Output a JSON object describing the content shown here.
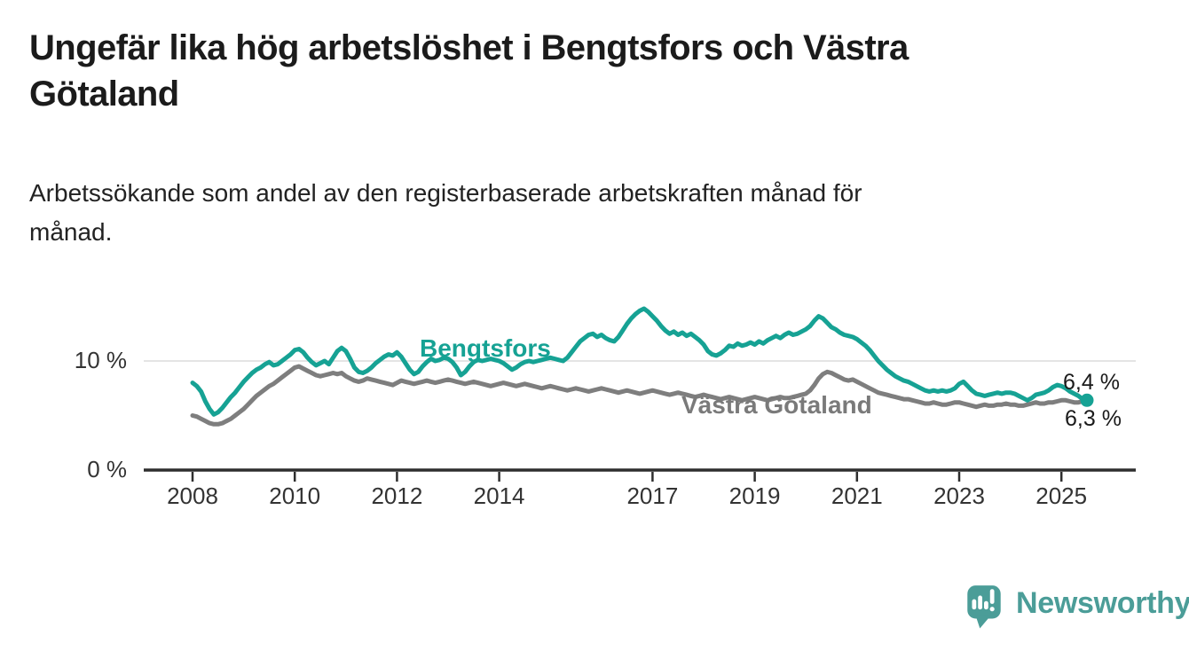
{
  "footer": {
    "brand": "Newsworthy",
    "brand_color": "#4b9d98",
    "logo_icon": "speech-bubble-with-bar-chart-and-exclamation"
  },
  "chart_data": {
    "type": "line",
    "title": "Ungefär lika hög arbetslöshet i Bengtsfors och Västra\nGötaland",
    "subtitle": "Arbetssökande som andel av den registerbaserade arbetskraften månad för\nmånad.",
    "unit": "%",
    "frequency": "monthly",
    "x_start": {
      "year": 2008,
      "month": 1
    },
    "x_end": {
      "year": 2025,
      "month": 7
    },
    "x_ticks": [
      "2008",
      "2010",
      "2012",
      "2014",
      "2017",
      "2019",
      "2021",
      "2023",
      "2025"
    ],
    "y_ticks": [
      {
        "value": 10,
        "label": "10 %"
      },
      {
        "value": 0,
        "label": "0 %"
      }
    ],
    "ylim": [
      0,
      15.5
    ],
    "grid": "single-horizontal-gridline-at-10",
    "legend": "inline-labels-on-lines",
    "colors": {
      "grid": "#dcdcdc",
      "axis": "#2e2e2e",
      "tick_text": "#333333"
    },
    "series": [
      {
        "name": "Bengtsfors",
        "color": "#16a294",
        "end_label": "6,4 %",
        "end_dot": true,
        "values": [
          8.0,
          7.7,
          7.2,
          6.3,
          5.6,
          5.1,
          5.3,
          5.7,
          6.2,
          6.7,
          7.1,
          7.6,
          8.1,
          8.5,
          8.9,
          9.2,
          9.4,
          9.7,
          9.9,
          9.6,
          9.7,
          10.0,
          10.3,
          10.6,
          11.0,
          11.1,
          10.8,
          10.3,
          9.9,
          9.6,
          9.8,
          10.0,
          9.7,
          10.3,
          10.9,
          11.2,
          10.9,
          10.2,
          9.4,
          9.0,
          8.9,
          9.1,
          9.4,
          9.8,
          10.1,
          10.4,
          10.6,
          10.5,
          10.8,
          10.4,
          9.8,
          9.2,
          8.8,
          9.0,
          9.5,
          9.9,
          10.2,
          10.0,
          10.1,
          10.3,
          10.2,
          9.9,
          9.4,
          8.7,
          9.0,
          9.5,
          9.9,
          10.1,
          10.0,
          10.1,
          10.2,
          10.1,
          10.0,
          9.8,
          9.5,
          9.2,
          9.4,
          9.7,
          9.9,
          10.0,
          9.9,
          10.0,
          10.1,
          10.2,
          10.3,
          10.2,
          10.1,
          10.0,
          10.3,
          10.8,
          11.3,
          11.8,
          12.1,
          12.4,
          12.5,
          12.2,
          12.4,
          12.1,
          11.9,
          11.8,
          12.2,
          12.8,
          13.4,
          13.9,
          14.3,
          14.6,
          14.8,
          14.5,
          14.1,
          13.7,
          13.2,
          12.8,
          12.5,
          12.7,
          12.4,
          12.6,
          12.3,
          12.5,
          12.2,
          11.9,
          11.5,
          10.9,
          10.6,
          10.5,
          10.7,
          11.0,
          11.4,
          11.3,
          11.6,
          11.4,
          11.5,
          11.7,
          11.5,
          11.8,
          11.6,
          11.9,
          12.1,
          12.3,
          12.1,
          12.4,
          12.6,
          12.4,
          12.5,
          12.7,
          12.9,
          13.2,
          13.7,
          14.1,
          13.9,
          13.5,
          13.1,
          12.9,
          12.6,
          12.4,
          12.3,
          12.2,
          12.0,
          11.7,
          11.4,
          11.0,
          10.5,
          10.0,
          9.6,
          9.2,
          8.9,
          8.6,
          8.4,
          8.2,
          8.1,
          7.9,
          7.7,
          7.5,
          7.3,
          7.2,
          7.3,
          7.2,
          7.3,
          7.2,
          7.3,
          7.5,
          7.9,
          8.1,
          7.7,
          7.3,
          7.0,
          6.9,
          6.8,
          6.9,
          7.0,
          7.1,
          7.0,
          7.1,
          7.1,
          7.0,
          6.8,
          6.6,
          6.4,
          6.6,
          6.9,
          7.0,
          7.1,
          7.3,
          7.6,
          7.8,
          7.7,
          7.5,
          7.2,
          7.0,
          6.8,
          6.5,
          6.4
        ]
      },
      {
        "name": "Västra Götaland",
        "color": "#7e7e7e",
        "end_label": "6,3 %",
        "end_dot": false,
        "values": [
          5.0,
          4.9,
          4.7,
          4.5,
          4.3,
          4.2,
          4.2,
          4.3,
          4.5,
          4.7,
          5.0,
          5.3,
          5.6,
          6.0,
          6.4,
          6.8,
          7.1,
          7.4,
          7.7,
          7.9,
          8.2,
          8.5,
          8.8,
          9.1,
          9.4,
          9.5,
          9.3,
          9.1,
          8.9,
          8.7,
          8.6,
          8.7,
          8.8,
          8.9,
          8.8,
          8.9,
          8.6,
          8.4,
          8.2,
          8.1,
          8.2,
          8.4,
          8.3,
          8.2,
          8.1,
          8.0,
          7.9,
          7.8,
          8.0,
          8.2,
          8.1,
          8.0,
          7.9,
          8.0,
          8.1,
          8.2,
          8.1,
          8.0,
          8.1,
          8.2,
          8.3,
          8.2,
          8.1,
          8.0,
          7.9,
          8.0,
          8.1,
          8.0,
          7.9,
          7.8,
          7.7,
          7.8,
          7.9,
          8.0,
          7.9,
          7.8,
          7.7,
          7.8,
          7.9,
          7.8,
          7.7,
          7.6,
          7.5,
          7.6,
          7.7,
          7.6,
          7.5,
          7.4,
          7.3,
          7.4,
          7.5,
          7.4,
          7.3,
          7.2,
          7.3,
          7.4,
          7.5,
          7.4,
          7.3,
          7.2,
          7.1,
          7.2,
          7.3,
          7.2,
          7.1,
          7.0,
          7.1,
          7.2,
          7.3,
          7.2,
          7.1,
          7.0,
          6.9,
          7.0,
          7.1,
          7.0,
          6.9,
          6.8,
          6.7,
          6.8,
          6.9,
          6.8,
          6.7,
          6.6,
          6.5,
          6.6,
          6.7,
          6.6,
          6.5,
          6.4,
          6.5,
          6.6,
          6.7,
          6.6,
          6.5,
          6.4,
          6.5,
          6.6,
          6.7,
          6.6,
          6.6,
          6.7,
          6.8,
          6.9,
          7.0,
          7.3,
          7.8,
          8.4,
          8.8,
          9.0,
          8.9,
          8.7,
          8.5,
          8.3,
          8.2,
          8.3,
          8.1,
          7.9,
          7.7,
          7.5,
          7.3,
          7.1,
          7.0,
          6.9,
          6.8,
          6.7,
          6.6,
          6.5,
          6.5,
          6.4,
          6.3,
          6.2,
          6.1,
          6.1,
          6.2,
          6.1,
          6.0,
          6.0,
          6.1,
          6.2,
          6.2,
          6.1,
          6.0,
          5.9,
          5.8,
          5.9,
          6.0,
          5.9,
          5.9,
          6.0,
          6.0,
          6.1,
          6.0,
          6.0,
          5.9,
          5.9,
          6.0,
          6.1,
          6.2,
          6.1,
          6.1,
          6.2,
          6.2,
          6.3,
          6.4,
          6.4,
          6.3,
          6.2,
          6.2,
          6.3,
          6.3
        ]
      }
    ]
  }
}
